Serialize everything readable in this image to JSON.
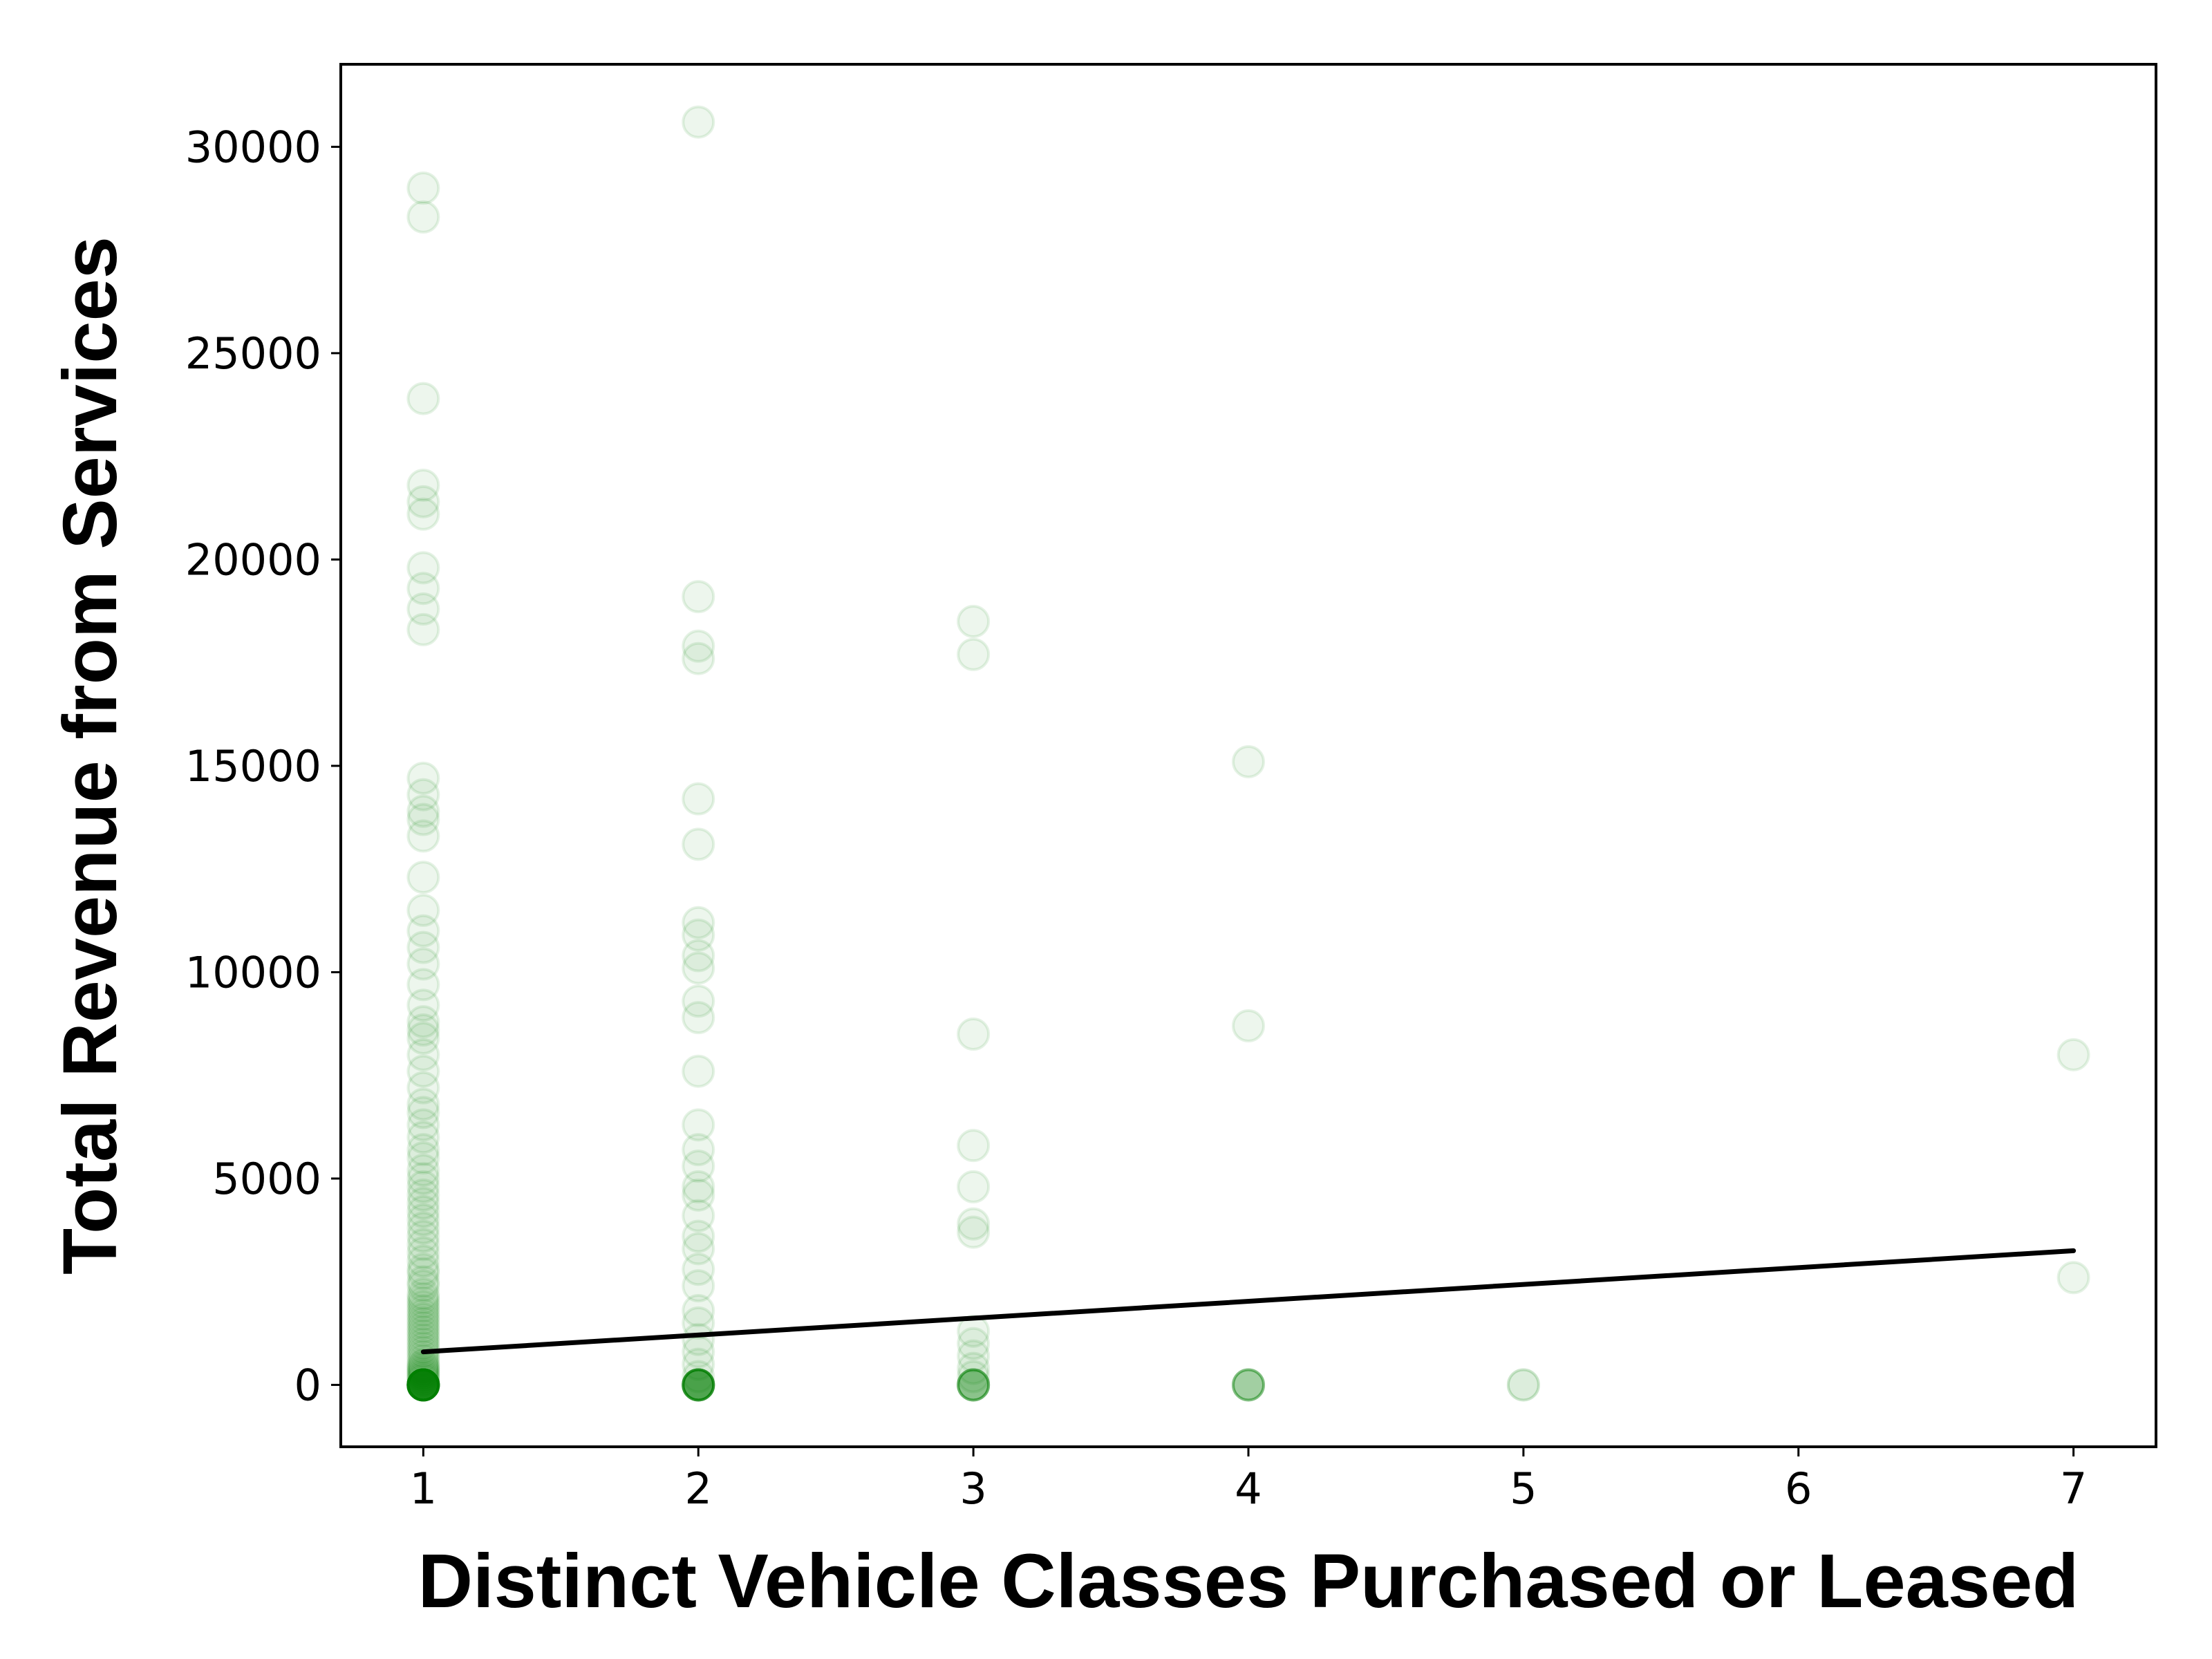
{
  "chart_data": {
    "type": "scatter",
    "xlabel": "Distinct Vehicle Classes Purchased or Leased",
    "ylabel": "Total Revenue from Services",
    "xlim": [
      0.7,
      7.3
    ],
    "ylim": [
      -1500,
      32000
    ],
    "xticks": [
      1,
      2,
      3,
      4,
      5,
      6,
      7
    ],
    "yticks": [
      0,
      5000,
      10000,
      15000,
      20000,
      25000,
      30000
    ],
    "grid": false,
    "legend": "none",
    "colors": {
      "points": "#008000",
      "fit_line": "#000000",
      "axes": "#000000"
    },
    "point_alpha": 0.07,
    "series": [
      {
        "x_value": 1,
        "y": [
          0,
          0,
          0,
          0,
          0,
          0,
          0,
          0,
          0,
          0,
          0,
          0,
          0,
          0,
          0,
          0,
          0,
          0,
          0,
          0,
          0,
          0,
          0,
          0,
          0,
          0,
          0,
          0,
          0,
          0,
          100,
          150,
          200,
          250,
          300,
          350,
          400,
          450,
          500,
          600,
          700,
          800,
          900,
          1000,
          1100,
          1200,
          1300,
          1400,
          1500,
          1600,
          1700,
          1800,
          1900,
          2000,
          2100,
          2200,
          2400,
          2500,
          2700,
          2800,
          3000,
          3200,
          3400,
          3600,
          3800,
          4000,
          4200,
          4400,
          4600,
          4800,
          5000,
          5200,
          5500,
          5700,
          6000,
          6300,
          6600,
          6800,
          7200,
          7600,
          8000,
          8400,
          8600,
          8800,
          9200,
          9700,
          10200,
          10600,
          11000,
          11500,
          12300,
          13300,
          13700,
          13900,
          14300,
          14700,
          18300,
          18800,
          19300,
          19800,
          21100,
          21400,
          21800,
          23900,
          28300,
          29000
        ]
      },
      {
        "x_value": 2,
        "y": [
          0,
          0,
          0,
          0,
          0,
          0,
          0,
          0,
          0,
          0,
          0,
          0,
          0,
          0,
          0,
          200,
          500,
          800,
          1100,
          1500,
          1800,
          2400,
          2800,
          3300,
          3600,
          4100,
          4600,
          4800,
          5300,
          5700,
          6300,
          7600,
          8900,
          9300,
          10100,
          10400,
          10900,
          11200,
          13100,
          14200,
          17600,
          17900,
          19100,
          30600
        ]
      },
      {
        "x_value": 3,
        "y": [
          0,
          0,
          0,
          0,
          0,
          0,
          0,
          0,
          200,
          400,
          700,
          1000,
          1300,
          3700,
          3900,
          4800,
          5800,
          8500,
          17700,
          18500
        ]
      },
      {
        "x_value": 4,
        "y": [
          0,
          0,
          0,
          0,
          0,
          0,
          8700,
          15100
        ]
      },
      {
        "x_value": 5,
        "y": [
          0,
          0
        ]
      },
      {
        "x_value": 7,
        "y": [
          2600,
          8000
        ]
      }
    ],
    "fit_line": {
      "x": [
        1,
        7
      ],
      "y": [
        800,
        3250
      ]
    }
  }
}
